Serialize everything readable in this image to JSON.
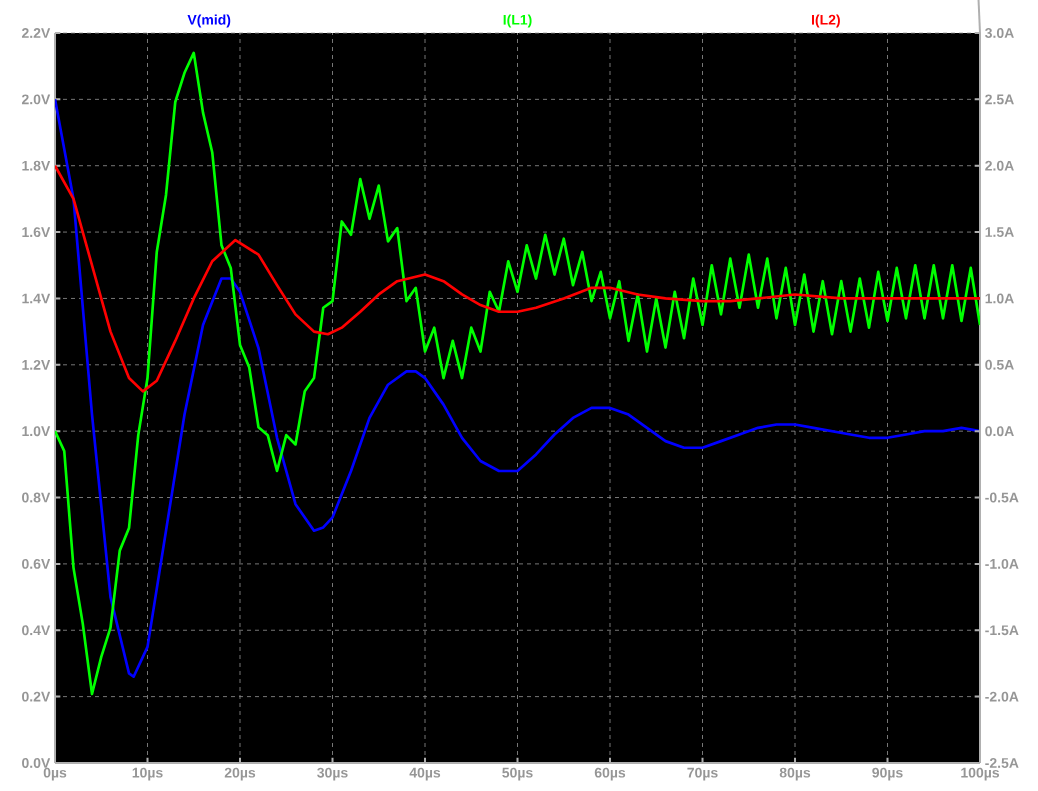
{
  "chart_data": {
    "type": "line",
    "grid": true,
    "legend": "top",
    "marker": "none",
    "line_style": "solid",
    "xlim": [
      0,
      100
    ],
    "xticks": [
      {
        "value": 0,
        "label": "0µs"
      },
      {
        "value": 10,
        "label": "10µs"
      },
      {
        "value": 20,
        "label": "20µs"
      },
      {
        "value": 30,
        "label": "30µs"
      },
      {
        "value": 40,
        "label": "40µs"
      },
      {
        "value": 50,
        "label": "50µs"
      },
      {
        "value": 60,
        "label": "60µs"
      },
      {
        "value": 70,
        "label": "70µs"
      },
      {
        "value": 80,
        "label": "80µs"
      },
      {
        "value": 90,
        "label": "90µs"
      },
      {
        "value": 100,
        "label": "100µs"
      }
    ],
    "ylim": [
      0,
      2.2
    ],
    "yticks": [
      {
        "value": 0,
        "label": "0.0V"
      },
      {
        "value": 0.2,
        "label": "0.2V"
      },
      {
        "value": 0.4,
        "label": "0.4V"
      },
      {
        "value": 0.6,
        "label": "0.6V"
      },
      {
        "value": 0.8,
        "label": "0.8V"
      },
      {
        "value": 1.0,
        "label": "1.0V"
      },
      {
        "value": 1.2,
        "label": "1.2V"
      },
      {
        "value": 1.4,
        "label": "1.4V"
      },
      {
        "value": 1.6,
        "label": "1.6V"
      },
      {
        "value": 1.8,
        "label": "1.8V"
      },
      {
        "value": 2.0,
        "label": "2.0V"
      },
      {
        "value": 2.2,
        "label": "2.2V"
      }
    ],
    "y2lim": [
      -2.5,
      3.0
    ],
    "y2ticks": [
      {
        "value": -2.5,
        "label": "-2.5A"
      },
      {
        "value": -2.0,
        "label": "-2.0A"
      },
      {
        "value": -1.5,
        "label": "-1.5A"
      },
      {
        "value": -1.0,
        "label": "-1.0A"
      },
      {
        "value": -0.5,
        "label": "-0.5A"
      },
      {
        "value": 0.0,
        "label": "0.0A"
      },
      {
        "value": 0.5,
        "label": "0.5A"
      },
      {
        "value": 1.0,
        "label": "1.0A"
      },
      {
        "value": 1.5,
        "label": "1.5A"
      },
      {
        "value": 2.0,
        "label": "2.0A"
      },
      {
        "value": 2.5,
        "label": "2.5A"
      },
      {
        "value": 3.0,
        "label": "3.0A"
      }
    ],
    "series": [
      {
        "name": "V(mid)",
        "color": "#0000ff",
        "axis": "y",
        "x": [
          0,
          2,
          4,
          6,
          8,
          8.5,
          10,
          12,
          14,
          16,
          18,
          19,
          20,
          22,
          24,
          26,
          28,
          29,
          30,
          32,
          34,
          36,
          38,
          39,
          40,
          42,
          44,
          46,
          48,
          50,
          52,
          54,
          56,
          58,
          60,
          62,
          64,
          66,
          68,
          70,
          72,
          74,
          76,
          78,
          80,
          82,
          84,
          86,
          88,
          90,
          92,
          94,
          96,
          98,
          100
        ],
        "values": [
          2.0,
          1.7,
          1.05,
          0.5,
          0.27,
          0.26,
          0.35,
          0.7,
          1.05,
          1.32,
          1.46,
          1.46,
          1.42,
          1.25,
          0.98,
          0.78,
          0.7,
          0.71,
          0.74,
          0.88,
          1.04,
          1.14,
          1.18,
          1.18,
          1.16,
          1.08,
          0.98,
          0.91,
          0.88,
          0.88,
          0.93,
          0.99,
          1.04,
          1.07,
          1.07,
          1.05,
          1.01,
          0.97,
          0.95,
          0.95,
          0.97,
          0.99,
          1.01,
          1.02,
          1.02,
          1.01,
          1.0,
          0.99,
          0.98,
          0.98,
          0.99,
          1.0,
          1.0,
          1.01,
          1.0
        ]
      },
      {
        "name": "I(L1)",
        "color": "#00ff00",
        "axis": "y2",
        "x": [
          0,
          1,
          2,
          3,
          4,
          5,
          6,
          7,
          8,
          9,
          10,
          11,
          12,
          13,
          14,
          15,
          16,
          17,
          18,
          19,
          20,
          21,
          22,
          23,
          24,
          25,
          26,
          27,
          28,
          29,
          30,
          31,
          32,
          33,
          34,
          35,
          36,
          37,
          38,
          39,
          40,
          41,
          42,
          43,
          44,
          45,
          46,
          47,
          48,
          49,
          50,
          51,
          52,
          53,
          54,
          55,
          56,
          57,
          58,
          59,
          60,
          61,
          62,
          63,
          64,
          65,
          66,
          67,
          68,
          69,
          70,
          71,
          72,
          73,
          74,
          75,
          76,
          77,
          78,
          79,
          80,
          81,
          82,
          83,
          84,
          85,
          86,
          87,
          88,
          89,
          90,
          91,
          92,
          93,
          94,
          95,
          96,
          97,
          98,
          99,
          100
        ],
        "values": [
          0,
          -0.15,
          -1.03,
          -1.45,
          -1.98,
          -1.7,
          -1.48,
          -0.9,
          -0.73,
          -0.03,
          0.4,
          1.35,
          1.78,
          2.48,
          2.7,
          2.85,
          2.4,
          2.1,
          1.4,
          1.23,
          0.65,
          0.48,
          0.03,
          -0.03,
          -0.3,
          -0.03,
          -0.1,
          0.3,
          0.4,
          0.93,
          0.98,
          1.58,
          1.48,
          1.9,
          1.6,
          1.85,
          1.43,
          1.53,
          0.98,
          1.08,
          0.6,
          0.78,
          0.4,
          0.68,
          0.4,
          0.78,
          0.6,
          1.05,
          0.9,
          1.28,
          1.05,
          1.4,
          1.15,
          1.48,
          1.18,
          1.45,
          1.1,
          1.35,
          0.98,
          1.2,
          0.85,
          1.13,
          0.68,
          1.03,
          0.6,
          1.0,
          0.63,
          1.05,
          0.7,
          1.15,
          0.8,
          1.25,
          0.88,
          1.3,
          0.93,
          1.33,
          0.93,
          1.3,
          0.85,
          1.23,
          0.8,
          1.18,
          0.75,
          1.13,
          0.73,
          1.13,
          0.75,
          1.15,
          0.78,
          1.2,
          0.83,
          1.23,
          0.85,
          1.25,
          0.85,
          1.25,
          0.85,
          1.25,
          0.83,
          1.23,
          0.8
        ]
      },
      {
        "name": "I(L2)",
        "color": "#ff0000",
        "axis": "y2",
        "x": [
          0,
          2,
          4,
          6,
          8,
          9.5,
          11,
          13,
          15,
          17,
          19.5,
          22,
          24,
          26,
          28,
          29.5,
          31,
          33,
          35,
          37,
          40,
          42,
          44,
          46,
          48,
          50,
          52,
          55,
          58,
          60,
          63,
          66,
          70,
          73,
          76,
          80,
          85,
          90,
          95,
          100
        ],
        "values": [
          2.0,
          1.75,
          1.25,
          0.75,
          0.4,
          0.3,
          0.38,
          0.68,
          1.0,
          1.28,
          1.44,
          1.33,
          1.1,
          0.88,
          0.75,
          0.73,
          0.78,
          0.9,
          1.03,
          1.13,
          1.18,
          1.13,
          1.03,
          0.95,
          0.9,
          0.9,
          0.93,
          1.0,
          1.08,
          1.08,
          1.03,
          1.0,
          0.98,
          0.98,
          1.0,
          1.03,
          1.0,
          1.0,
          1.0,
          1.0
        ]
      }
    ]
  }
}
